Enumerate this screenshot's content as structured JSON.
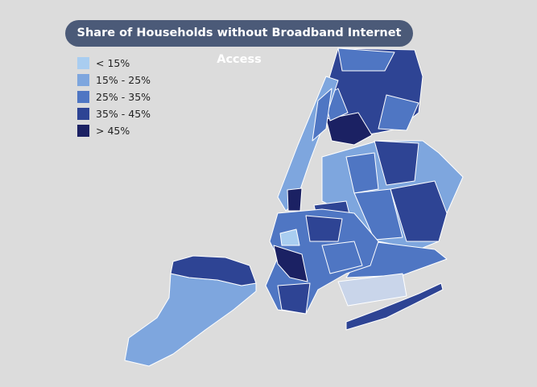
{
  "title": "Share of Households without Broadband Internet Access",
  "legend": {
    "items": [
      {
        "label": "< 15%",
        "color": "#a9cdf0"
      },
      {
        "label": "15% - 25%",
        "color": "#7ea6de"
      },
      {
        "label": "25% - 35%",
        "color": "#4f76c3"
      },
      {
        "label": "35% - 45%",
        "color": "#2e4494"
      },
      {
        "label": "> 45%",
        "color": "#1b2163"
      }
    ]
  }
}
